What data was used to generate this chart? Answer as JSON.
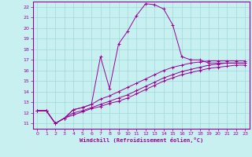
{
  "xlabel": "Windchill (Refroidissement éolien,°C)",
  "background_color": "#c8f0f0",
  "grid_color": "#a0d8d8",
  "line_color": "#990099",
  "xlim": [
    -0.5,
    23.5
  ],
  "ylim": [
    10.5,
    22.5
  ],
  "xticks": [
    0,
    1,
    2,
    3,
    4,
    5,
    6,
    7,
    8,
    9,
    10,
    11,
    12,
    13,
    14,
    15,
    16,
    17,
    18,
    19,
    20,
    21,
    22,
    23
  ],
  "yticks": [
    11,
    12,
    13,
    14,
    15,
    16,
    17,
    18,
    19,
    20,
    21,
    22
  ],
  "series": [
    {
      "x": [
        0,
        1,
        2,
        3,
        4,
        5,
        6,
        7,
        8,
        9,
        10,
        11,
        12,
        13,
        14,
        15,
        16,
        17,
        18,
        19,
        20,
        21,
        22,
        23
      ],
      "y": [
        12.2,
        12.2,
        11.0,
        11.5,
        12.3,
        12.5,
        12.8,
        17.3,
        14.3,
        18.5,
        19.7,
        21.2,
        22.3,
        22.2,
        21.8,
        20.3,
        17.3,
        17.0,
        17.0,
        16.7,
        16.7,
        16.7,
        16.7,
        16.7
      ]
    },
    {
      "x": [
        0,
        1,
        2,
        3,
        4,
        5,
        6,
        7,
        8,
        9,
        10,
        11,
        12,
        13,
        14,
        15,
        16,
        17,
        18,
        19,
        20,
        21,
        22,
        23
      ],
      "y": [
        12.2,
        12.2,
        11.0,
        11.5,
        12.3,
        12.5,
        12.8,
        13.3,
        13.6,
        14.0,
        14.4,
        14.8,
        15.2,
        15.6,
        16.0,
        16.3,
        16.5,
        16.7,
        16.8,
        16.9,
        16.9,
        16.9,
        16.9,
        16.9
      ]
    },
    {
      "x": [
        0,
        1,
        2,
        3,
        4,
        5,
        6,
        7,
        8,
        9,
        10,
        11,
        12,
        13,
        14,
        15,
        16,
        17,
        18,
        19,
        20,
        21,
        22,
        23
      ],
      "y": [
        12.2,
        12.2,
        11.0,
        11.5,
        12.0,
        12.2,
        12.5,
        12.8,
        13.1,
        13.4,
        13.7,
        14.1,
        14.5,
        14.9,
        15.3,
        15.6,
        15.9,
        16.1,
        16.3,
        16.5,
        16.6,
        16.7,
        16.7,
        16.7
      ]
    },
    {
      "x": [
        0,
        1,
        2,
        3,
        4,
        5,
        6,
        7,
        8,
        9,
        10,
        11,
        12,
        13,
        14,
        15,
        16,
        17,
        18,
        19,
        20,
        21,
        22,
        23
      ],
      "y": [
        12.2,
        12.2,
        11.0,
        11.5,
        11.8,
        12.1,
        12.4,
        12.6,
        12.9,
        13.1,
        13.4,
        13.8,
        14.2,
        14.6,
        15.0,
        15.3,
        15.6,
        15.8,
        16.0,
        16.2,
        16.3,
        16.4,
        16.5,
        16.5
      ]
    }
  ]
}
